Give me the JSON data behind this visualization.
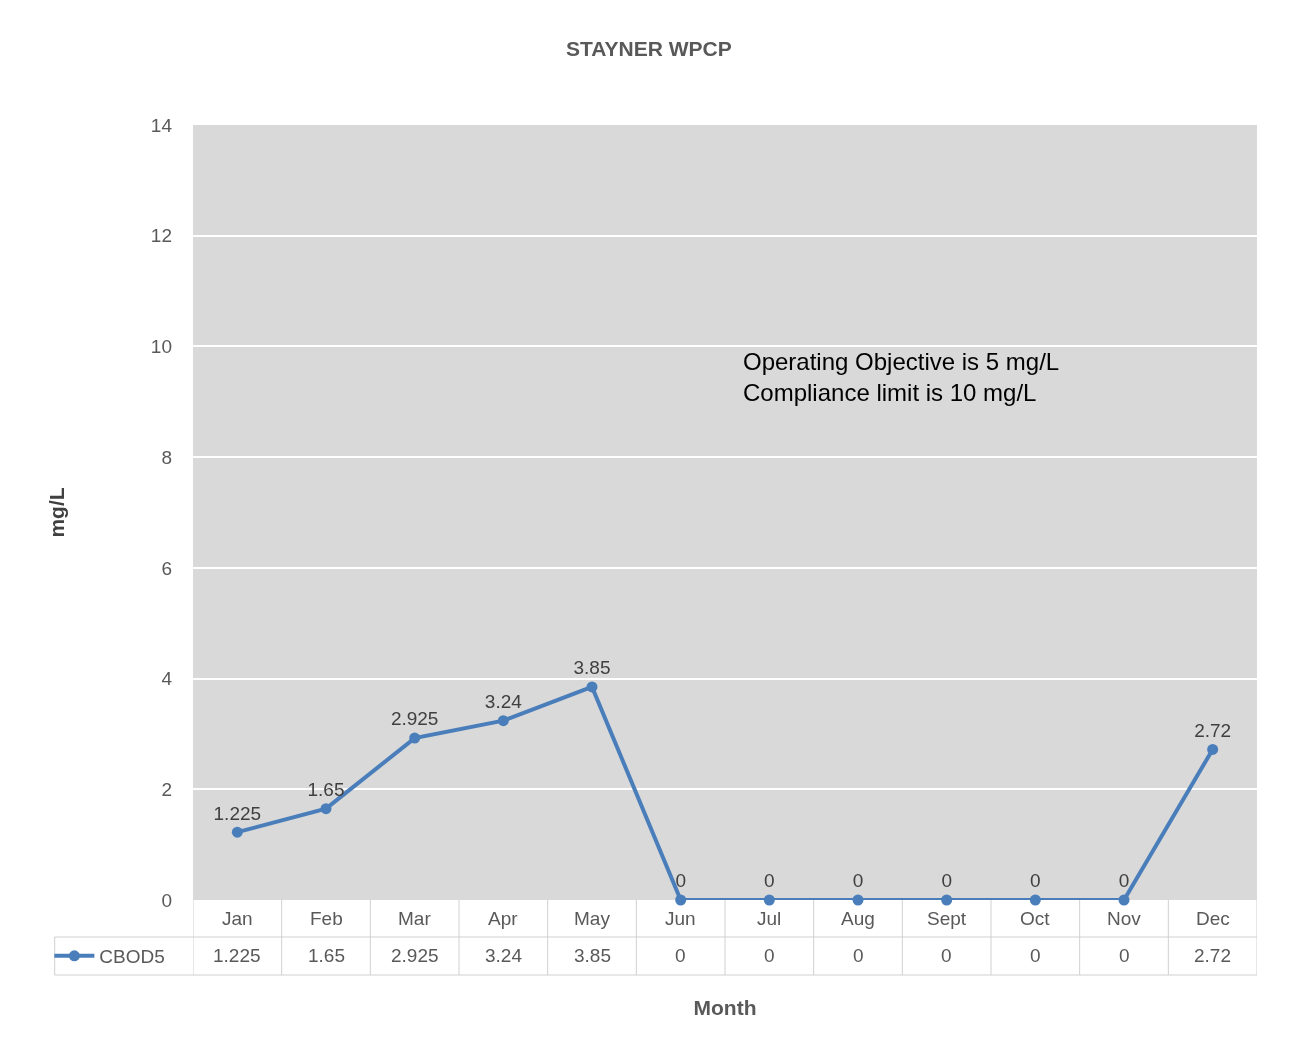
{
  "chart_data": {
    "type": "line",
    "title": "STAYNER WPCP",
    "xlabel": "Month",
    "ylabel": "mg/L",
    "categories": [
      "Jan",
      "Feb",
      "Mar",
      "Apr",
      "May",
      "Jun",
      "Jul",
      "Aug",
      "Sept",
      "Oct",
      "Nov",
      "Dec"
    ],
    "series": [
      {
        "name": "CBOD5",
        "color": "#4a7ebb",
        "values": [
          1.225,
          1.65,
          2.925,
          3.24,
          3.85,
          0,
          0,
          0,
          0,
          0,
          0,
          2.72
        ]
      }
    ],
    "ylim": [
      0,
      14
    ],
    "yticks": [
      0,
      2,
      4,
      6,
      8,
      10,
      12,
      14
    ],
    "grid": "y",
    "marker": "circle",
    "line_style": "solid",
    "data_labels": true,
    "legend": "bottom left",
    "annotations": [
      "Operating Objective is 5 mg/L\nCompliance limit is 10 mg/L",
      "1.225",
      "1.65",
      "2.925",
      "3.24",
      "3.85",
      "0",
      "0",
      "0",
      "0",
      "0",
      "0",
      "2.72"
    ]
  }
}
